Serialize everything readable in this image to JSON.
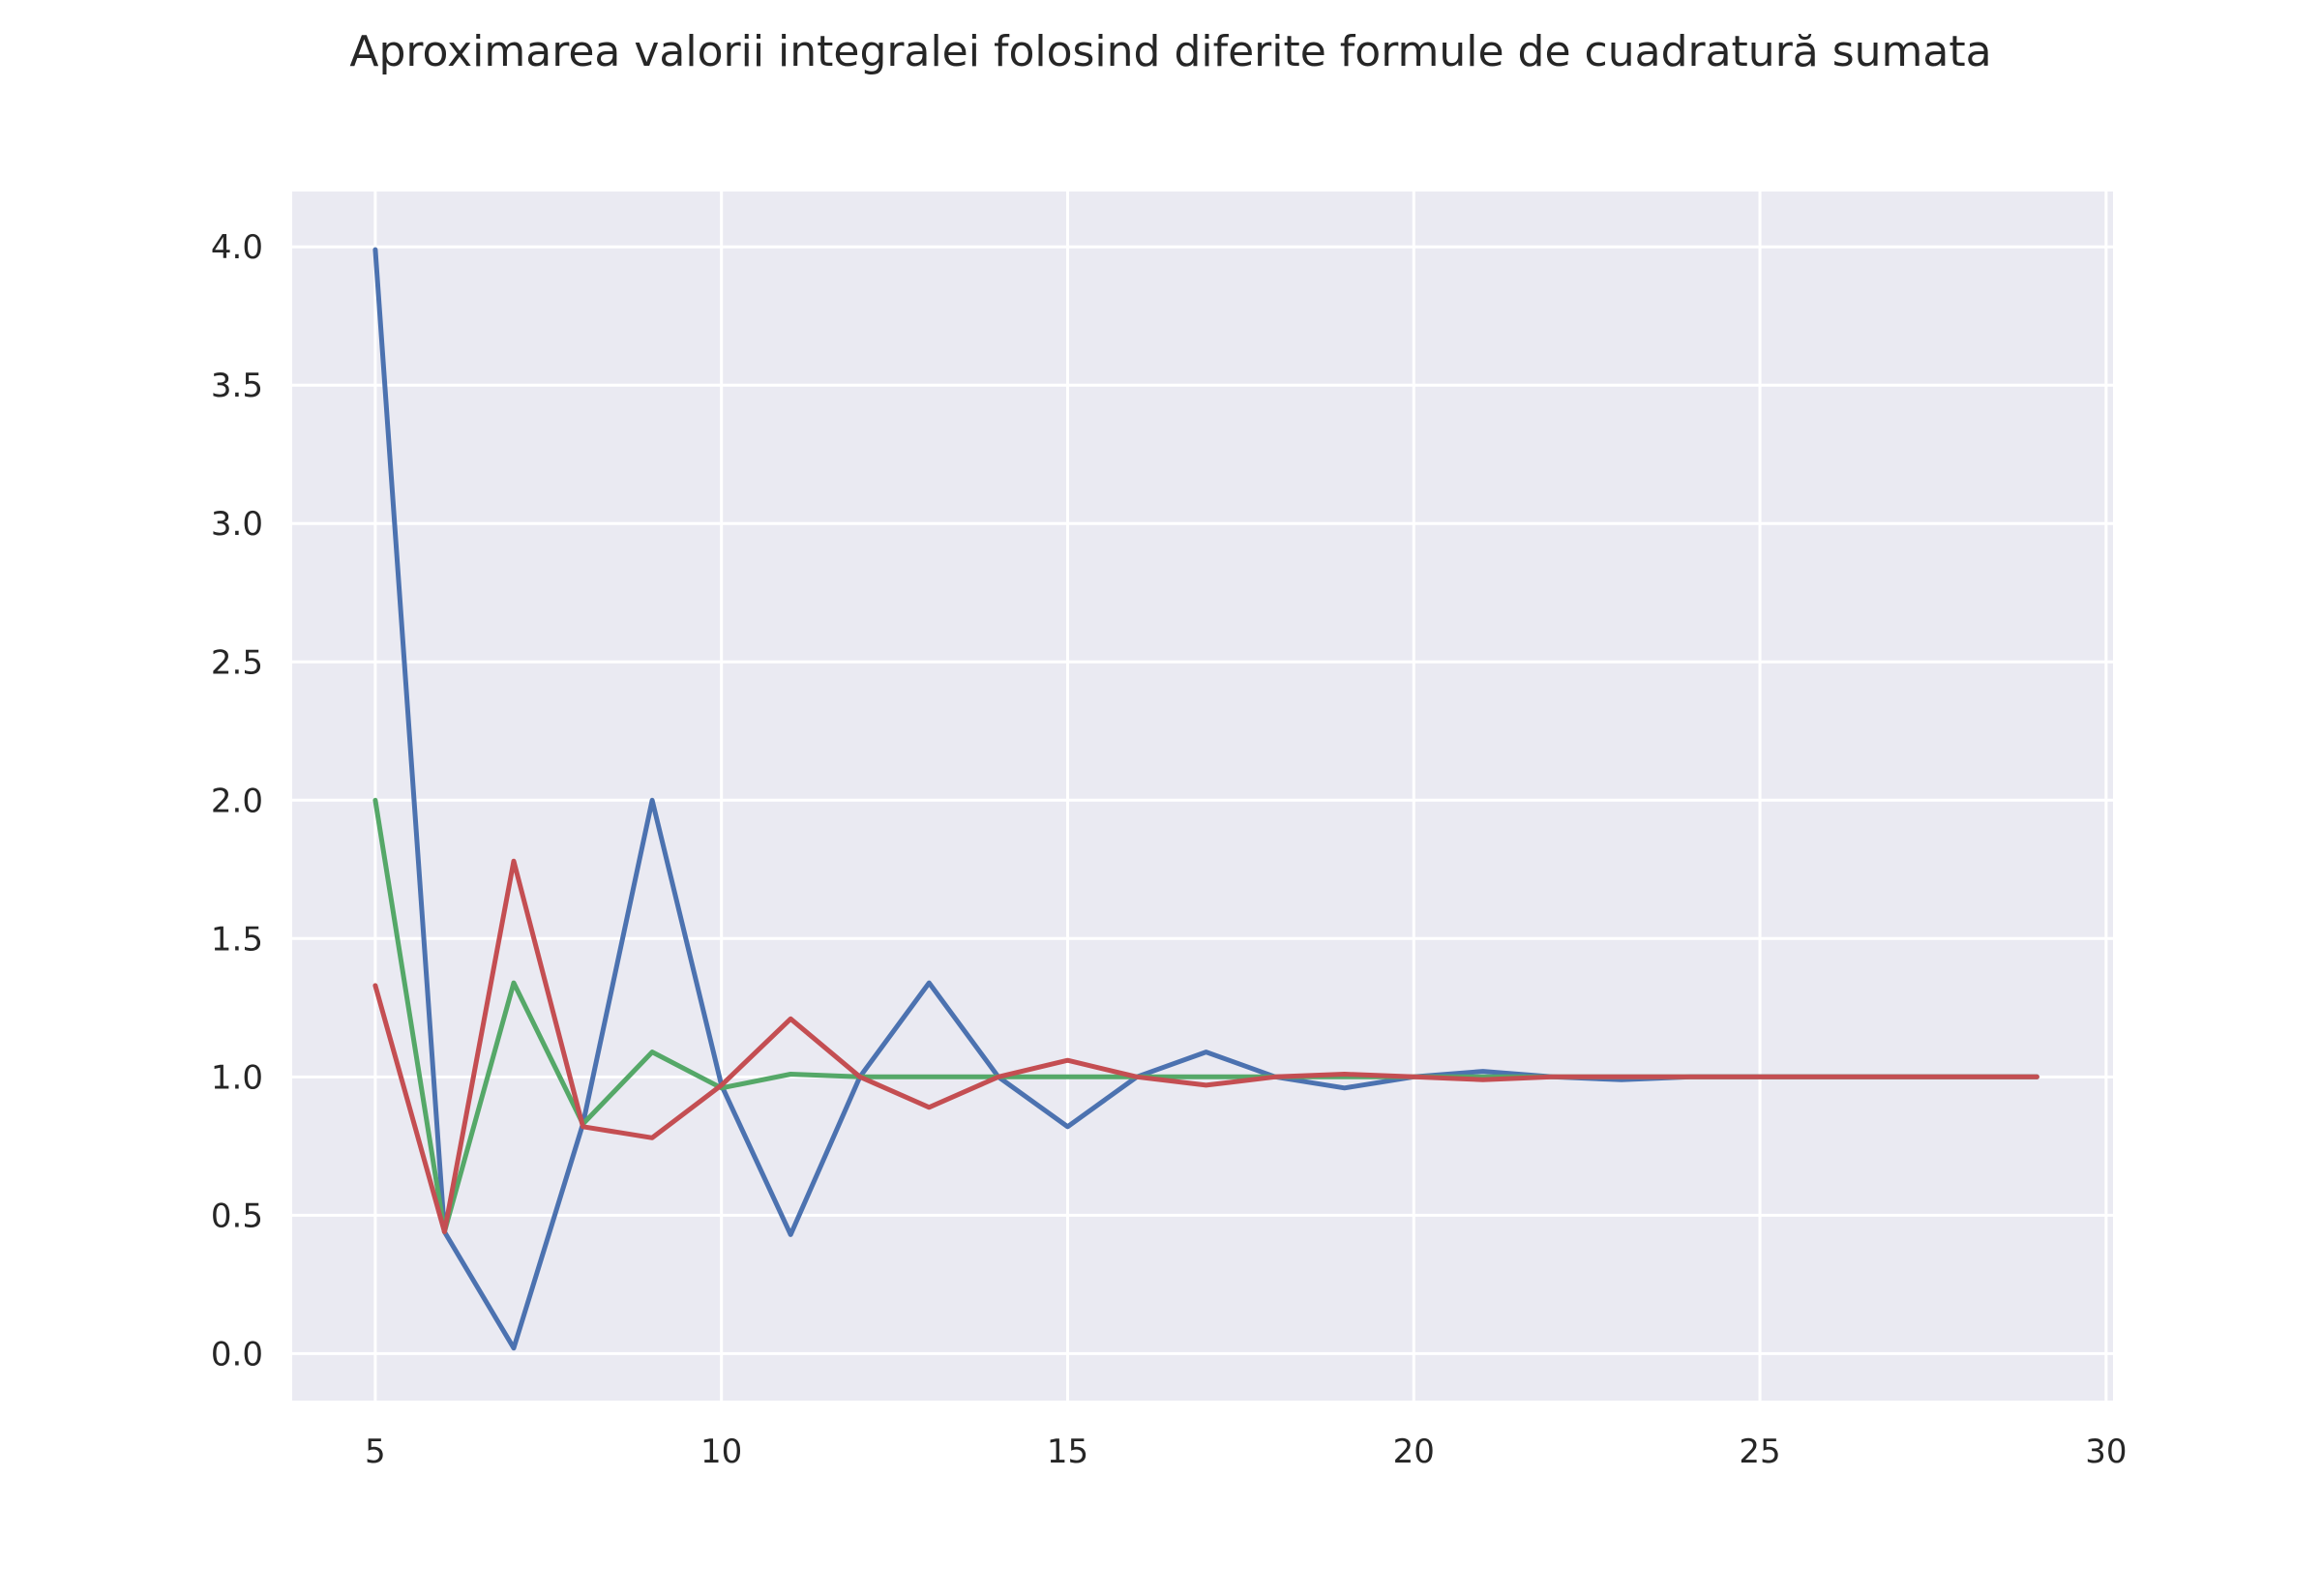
{
  "chart_data": {
    "type": "line",
    "title": "Aproximarea valorii integralei folosind diferite formule de cuadratură sumata",
    "xlabel": "",
    "ylabel": "",
    "xlim": [
      3.8,
      30.1
    ],
    "ylim": [
      -0.17,
      4.2
    ],
    "xticks": [
      5,
      10,
      15,
      20,
      25,
      30
    ],
    "yticks": [
      0.0,
      0.5,
      1.0,
      1.5,
      2.0,
      2.5,
      3.0,
      3.5,
      4.0
    ],
    "grid": true,
    "background": "#eaeaf2",
    "grid_color": "#ffffff",
    "x": [
      5,
      6,
      7,
      8,
      9,
      10,
      11,
      12,
      13,
      14,
      15,
      16,
      17,
      18,
      19,
      20,
      21,
      22,
      23,
      24,
      25,
      26,
      27,
      28,
      29
    ],
    "series": [
      {
        "color": "#4c72b0",
        "values": [
          3.99,
          0.44,
          0.02,
          0.83,
          2.0,
          0.97,
          0.43,
          1.0,
          1.34,
          1.0,
          0.82,
          1.0,
          1.09,
          1.0,
          0.96,
          1.0,
          1.02,
          1.0,
          0.99,
          1.0,
          1.0,
          1.0,
          1.0,
          1.0,
          1.0
        ]
      },
      {
        "color": "#55a868",
        "values": [
          2.0,
          0.44,
          1.34,
          0.83,
          1.09,
          0.96,
          1.01,
          1.0,
          1.0,
          1.0,
          1.0,
          1.0,
          1.0,
          1.0,
          1.0,
          1.0,
          1.0,
          1.0,
          1.0,
          1.0,
          1.0,
          1.0,
          1.0,
          1.0,
          1.0
        ]
      },
      {
        "color": "#c44e52",
        "values": [
          1.33,
          0.44,
          1.78,
          0.82,
          0.78,
          0.97,
          1.21,
          1.0,
          0.89,
          1.0,
          1.06,
          1.0,
          0.97,
          1.0,
          1.01,
          1.0,
          0.99,
          1.0,
          1.0,
          1.0,
          1.0,
          1.0,
          1.0,
          1.0,
          1.0
        ]
      }
    ]
  }
}
